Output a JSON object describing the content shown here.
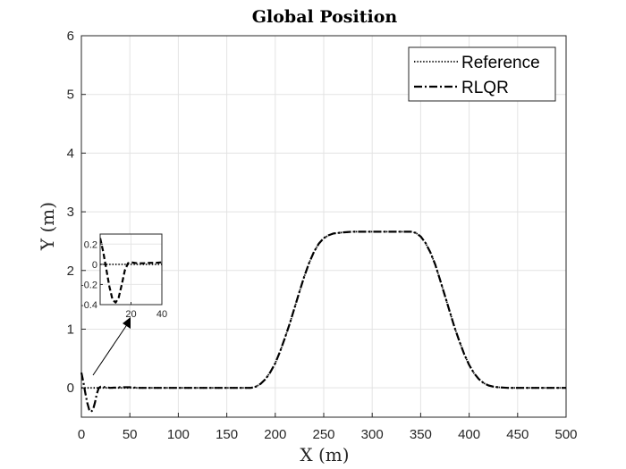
{
  "chart_data": {
    "type": "line",
    "title": "Global Position",
    "xlabel": "X (m)",
    "ylabel": "Y (m)",
    "xlim": [
      0,
      500
    ],
    "ylim": [
      -0.5,
      6
    ],
    "xticks": [
      0,
      50,
      100,
      150,
      200,
      250,
      300,
      350,
      400,
      450,
      500
    ],
    "yticks": [
      0,
      1,
      2,
      3,
      4,
      5,
      6
    ],
    "grid": true,
    "legend_position": "top-right",
    "series": [
      {
        "name": "Reference",
        "style": "dotted",
        "x": [
          0,
          175,
          180,
          185,
          190,
          195,
          200,
          205,
          210,
          215,
          220,
          225,
          230,
          235,
          240,
          245,
          250,
          255,
          260,
          270,
          280,
          290,
          300,
          310,
          320,
          330,
          340,
          345,
          350,
          355,
          360,
          365,
          370,
          375,
          380,
          385,
          390,
          395,
          400,
          405,
          410,
          415,
          420,
          425,
          430,
          440,
          450,
          500
        ],
        "y": [
          0,
          0,
          0.02,
          0.07,
          0.15,
          0.27,
          0.42,
          0.62,
          0.85,
          1.1,
          1.37,
          1.64,
          1.9,
          2.13,
          2.32,
          2.46,
          2.55,
          2.6,
          2.63,
          2.65,
          2.66,
          2.66,
          2.66,
          2.66,
          2.66,
          2.66,
          2.66,
          2.64,
          2.58,
          2.47,
          2.31,
          2.1,
          1.84,
          1.57,
          1.3,
          1.03,
          0.79,
          0.57,
          0.39,
          0.25,
          0.15,
          0.08,
          0.04,
          0.02,
          0.01,
          0,
          0,
          0
        ]
      },
      {
        "name": "RLQR",
        "style": "dashdot",
        "x": [
          0,
          2,
          4,
          6,
          8,
          10,
          12,
          14,
          16,
          18,
          20,
          25,
          30,
          40,
          50,
          60,
          175,
          180,
          185,
          190,
          195,
          200,
          205,
          210,
          215,
          220,
          225,
          230,
          235,
          240,
          245,
          250,
          255,
          260,
          270,
          280,
          290,
          300,
          310,
          320,
          330,
          340,
          345,
          350,
          355,
          360,
          365,
          370,
          375,
          380,
          385,
          390,
          395,
          400,
          405,
          410,
          415,
          420,
          425,
          430,
          440,
          450,
          500
        ],
        "y": [
          0.26,
          0.1,
          -0.08,
          -0.25,
          -0.37,
          -0.41,
          -0.37,
          -0.25,
          -0.1,
          0.0,
          0.02,
          0.01,
          0.0,
          0.01,
          0.01,
          0.0,
          0,
          0.02,
          0.07,
          0.15,
          0.27,
          0.42,
          0.62,
          0.85,
          1.1,
          1.37,
          1.64,
          1.9,
          2.13,
          2.32,
          2.46,
          2.55,
          2.6,
          2.63,
          2.65,
          2.66,
          2.66,
          2.66,
          2.66,
          2.66,
          2.66,
          2.66,
          2.64,
          2.58,
          2.47,
          2.31,
          2.1,
          1.84,
          1.57,
          1.3,
          1.03,
          0.79,
          0.57,
          0.39,
          0.25,
          0.15,
          0.08,
          0.04,
          0.02,
          0.01,
          0,
          0,
          0
        ]
      }
    ],
    "inset": {
      "xlim": [
        0,
        40
      ],
      "ylim": [
        -0.4,
        0.3
      ],
      "xticks": [
        20,
        40
      ],
      "yticks": [
        0.2,
        0,
        -0.2,
        -0.4
      ],
      "ytick_labels": [
        "0.2",
        "0",
        "-0.2",
        "-0.4"
      ],
      "series": [
        {
          "style": "dotted",
          "x": [
            0,
            40
          ],
          "y": [
            0,
            0
          ]
        },
        {
          "style": "dashed",
          "x": [
            0,
            2,
            4,
            6,
            8,
            10,
            12,
            14,
            16,
            18,
            20,
            24,
            28,
            32,
            36,
            40
          ],
          "y": [
            0.26,
            0.12,
            -0.05,
            -0.22,
            -0.35,
            -0.38,
            -0.33,
            -0.2,
            -0.06,
            0.01,
            0.02,
            0.01,
            0.01,
            0.015,
            0.015,
            0.02
          ]
        }
      ]
    }
  }
}
